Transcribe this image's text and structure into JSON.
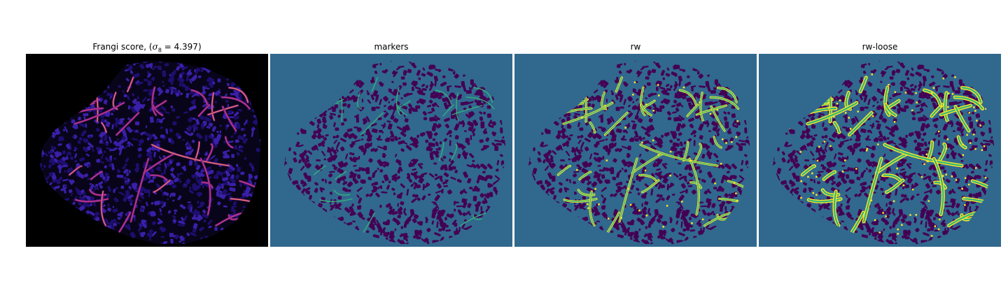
{
  "figure": {
    "panels": [
      {
        "title_prefix": "Frangi score, (",
        "title_symbol": "σ",
        "title_subscript": "8",
        "title_suffix": " = 4.397)",
        "colormap": "magma",
        "background_color": "#000000",
        "blob_color": "#2a1593"
      },
      {
        "title": "markers",
        "colormap": "viridis",
        "background_color": "#31688e",
        "blob_color": "#440154",
        "highlight_color": "#35b779"
      },
      {
        "title": "rw",
        "colormap": "viridis",
        "background_color": "#31688e",
        "blob_color": "#440154",
        "highlight_color": "#35b779",
        "accent_color": "#fde725"
      },
      {
        "title": "rw-loose",
        "colormap": "viridis",
        "background_color": "#31688e",
        "blob_color": "#440154",
        "highlight_color": "#35b779",
        "accent_color": "#fde725"
      }
    ]
  }
}
